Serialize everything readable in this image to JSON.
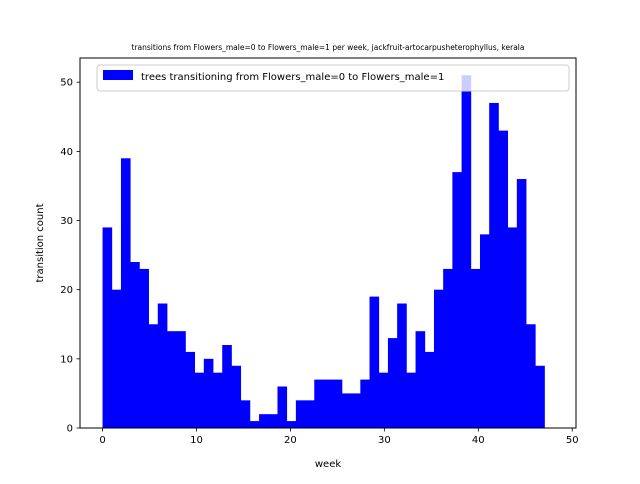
{
  "chart_data": {
    "type": "bar",
    "title": "transitions from Flowers_male=0 to Flowers_male=1 per week, jackfruit-artocarpusheterophyllus, kerala",
    "xlabel": "week",
    "ylabel": "transition count",
    "xlim": [
      -2.4,
      50.4
    ],
    "ylim": [
      0,
      53.5
    ],
    "xticks": [
      0,
      10,
      20,
      30,
      40,
      50
    ],
    "yticks": [
      0,
      10,
      20,
      30,
      40,
      50
    ],
    "grid": false,
    "legend": {
      "placement": "top-right"
    },
    "series": [
      {
        "name": "trees transitioning from Flowers_male=0 to Flowers_male=1",
        "color": "#0000ff",
        "bin_start": 0,
        "bin_width": 0.98,
        "values": [
          29,
          20,
          39,
          24,
          23,
          15,
          18,
          14,
          14,
          11,
          8,
          10,
          8,
          12,
          9,
          4,
          1,
          2,
          2,
          6,
          1,
          4,
          4,
          7,
          7,
          7,
          5,
          5,
          7,
          19,
          8,
          13,
          18,
          8,
          14,
          11,
          20,
          23,
          37,
          51,
          23,
          28,
          47,
          43,
          29,
          36,
          15,
          9
        ]
      }
    ]
  }
}
